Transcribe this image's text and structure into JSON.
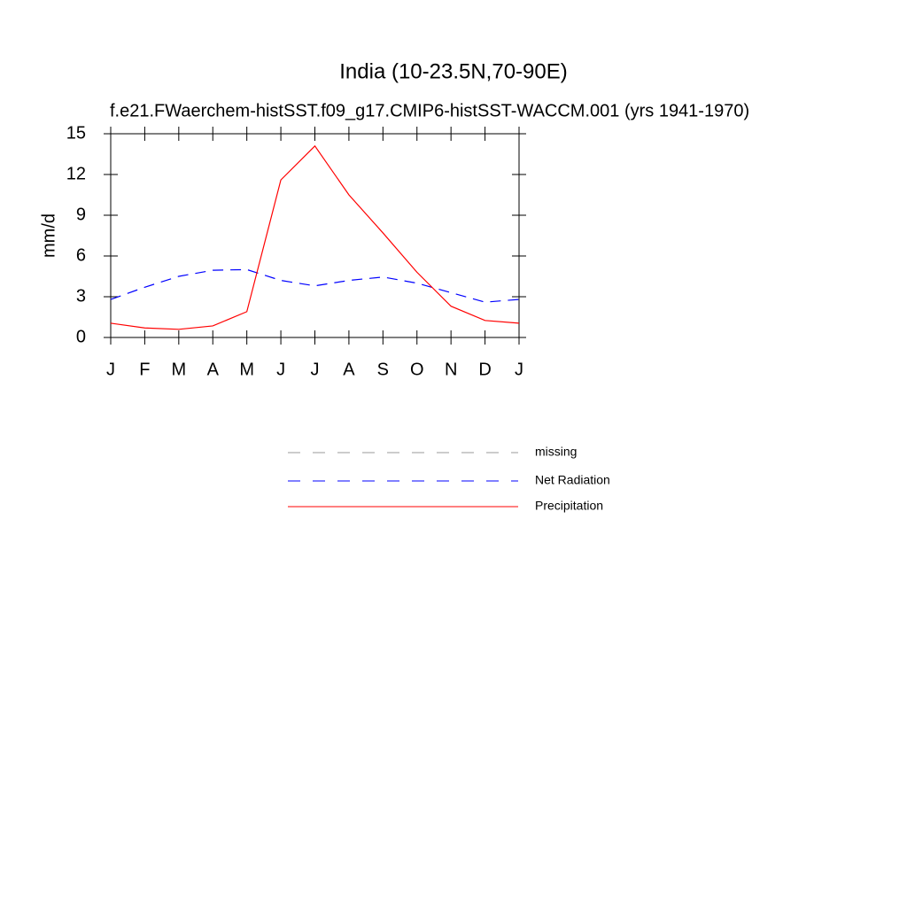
{
  "chart_data": {
    "type": "line",
    "title": "India (10-23.5N,70-90E)",
    "subtitle": "f.e21.FWaerchem-histSST.f09_g17.CMIP6-histSST-WACCM.001 (yrs 1941-1970)",
    "y_label": "mm/d",
    "categories": [
      "J",
      "F",
      "M",
      "A",
      "M",
      "J",
      "J",
      "A",
      "S",
      "O",
      "N",
      "D",
      "J"
    ],
    "series": [
      {
        "name": "missing",
        "color": "#999999",
        "dash": true,
        "values": [
          null,
          null,
          null,
          null,
          null,
          null,
          null,
          null,
          null,
          null,
          null,
          null,
          null
        ]
      },
      {
        "name": "Net Radiation",
        "color": "#0000ff",
        "dash": true,
        "values": [
          2.8,
          3.7,
          4.5,
          4.95,
          5.0,
          4.2,
          3.8,
          4.2,
          4.45,
          4.0,
          3.3,
          2.6,
          2.8
        ]
      },
      {
        "name": "Precipitation",
        "color": "#ff0000",
        "dash": false,
        "values": [
          1.05,
          0.7,
          0.6,
          0.85,
          1.9,
          11.6,
          14.1,
          10.5,
          7.7,
          4.8,
          2.3,
          1.25,
          1.05
        ]
      }
    ],
    "ylim": [
      0,
      15
    ],
    "yticks": [
      0,
      3,
      6,
      9,
      12,
      15
    ]
  }
}
